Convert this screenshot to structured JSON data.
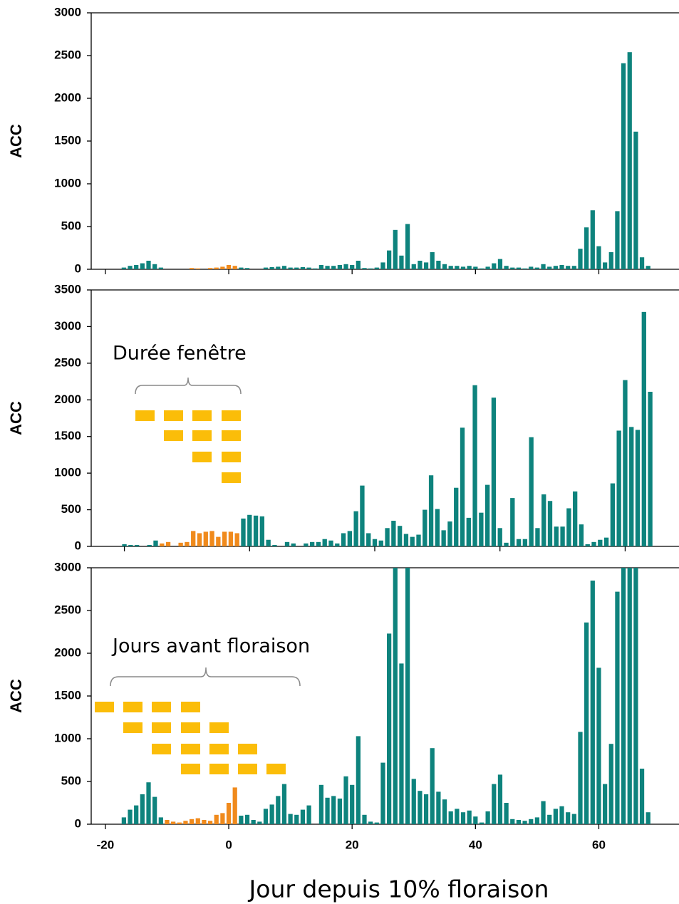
{
  "chart_data": [
    {
      "type": "bar",
      "ylabel": "ACC",
      "ylim": [
        0,
        3000
      ],
      "yticks": [
        0,
        500,
        1000,
        1500,
        2000,
        2500,
        3000
      ],
      "xlim": [
        -22.3,
        73.0
      ],
      "xticks": [
        -20,
        0,
        20,
        40,
        60
      ],
      "xtick_labels": false,
      "x": [
        -17,
        -16,
        -15,
        -14,
        -13,
        -12,
        -11,
        -10,
        -9,
        -8,
        -7,
        -6,
        -5,
        -4,
        -3,
        -2,
        -1,
        0,
        1,
        2,
        3,
        4,
        5,
        6,
        7,
        8,
        9,
        10,
        11,
        12,
        13,
        14,
        15,
        16,
        17,
        18,
        19,
        20,
        21,
        22,
        23,
        24,
        25,
        26,
        27,
        28,
        29,
        30,
        31,
        32,
        33,
        34,
        35,
        36,
        37,
        38,
        39,
        40,
        41,
        42,
        43,
        44,
        45,
        46,
        47,
        48,
        49,
        50,
        51,
        52,
        53,
        54,
        55,
        56,
        57,
        58,
        59,
        60,
        61,
        62,
        63,
        64,
        65,
        66,
        67,
        68
      ],
      "series": [
        {
          "color": "#0e837d",
          "values": [
            20,
            40,
            50,
            70,
            100,
            60,
            20,
            0,
            0,
            0,
            0,
            null,
            null,
            null,
            null,
            null,
            null,
            null,
            null,
            20,
            15,
            0,
            0,
            20,
            25,
            30,
            40,
            20,
            20,
            25,
            20,
            10,
            50,
            40,
            40,
            50,
            60,
            50,
            100,
            15,
            10,
            20,
            80,
            220,
            460,
            160,
            530,
            60,
            100,
            80,
            200,
            100,
            60,
            40,
            40,
            30,
            40,
            30,
            10,
            30,
            70,
            120,
            40,
            20,
            20,
            10,
            30,
            20,
            60,
            30,
            40,
            50,
            40,
            40,
            240,
            490,
            690,
            270,
            80,
            200,
            680,
            2410,
            2540,
            1610,
            140,
            40
          ]
        },
        {
          "color": "#f08a1c",
          "values": [
            null,
            null,
            null,
            null,
            null,
            null,
            null,
            null,
            null,
            null,
            null,
            15,
            10,
            0,
            15,
            20,
            30,
            50,
            40,
            null,
            null,
            null,
            null,
            null,
            null,
            null,
            null,
            null,
            null,
            null,
            null,
            null,
            null,
            null,
            null,
            null,
            null,
            null,
            null,
            null,
            null,
            null,
            null,
            null,
            null,
            null,
            null,
            null,
            null,
            null,
            null,
            null,
            null,
            null,
            null,
            null,
            null,
            null,
            null,
            null,
            null,
            null,
            null,
            null,
            null,
            null,
            null,
            null,
            null,
            null,
            null,
            null,
            null,
            null,
            null,
            null,
            null,
            null,
            null,
            null,
            null,
            null,
            null,
            null,
            null,
            null
          ]
        }
      ]
    },
    {
      "type": "bar",
      "ylabel": "ACC",
      "annotation": "Durée fenêtre",
      "ylim": [
        0,
        3500
      ],
      "yticks": [
        0,
        500,
        1000,
        1500,
        2000,
        2500,
        3000,
        3500
      ],
      "xlim": [
        -25.3,
        68.6
      ],
      "xticks": [
        -20,
        0,
        20,
        40,
        60
      ],
      "xtick_labels": false,
      "x": [
        -20,
        -19,
        -18,
        -17,
        -16,
        -15,
        -14,
        -13,
        -12,
        -11,
        -10,
        -9,
        -8,
        -7,
        -6,
        -5,
        -4,
        -3,
        -2,
        -1,
        0,
        1,
        2,
        3,
        4,
        5,
        6,
        7,
        8,
        9,
        10,
        11,
        12,
        13,
        14,
        15,
        16,
        17,
        18,
        19,
        20,
        21,
        22,
        23,
        24,
        25,
        26,
        27,
        28,
        29,
        30,
        31,
        32,
        33,
        34,
        35,
        36,
        37,
        38,
        39,
        40,
        41,
        42,
        43,
        44,
        45,
        46,
        47,
        48,
        49,
        50,
        51,
        52,
        53,
        54,
        55,
        56,
        57,
        58,
        59,
        60,
        61,
        62,
        63,
        64
      ],
      "series": [
        {
          "color": "#0e837d",
          "values": [
            30,
            20,
            20,
            0,
            20,
            80,
            null,
            null,
            0,
            null,
            null,
            null,
            null,
            null,
            null,
            null,
            null,
            null,
            null,
            380,
            430,
            420,
            410,
            90,
            20,
            0,
            60,
            40,
            0,
            40,
            60,
            60,
            100,
            80,
            40,
            180,
            210,
            480,
            830,
            180,
            100,
            80,
            250,
            350,
            280,
            170,
            130,
            160,
            500,
            970,
            510,
            220,
            340,
            800,
            1620,
            390,
            2200,
            460,
            840,
            2030,
            250,
            50,
            660,
            100,
            100,
            1490,
            250,
            710,
            620,
            270,
            270,
            520,
            750,
            300,
            30,
            60,
            90,
            120,
            860,
            1580,
            2270,
            1630,
            1590,
            3200,
            2110
          ]
        },
        {
          "color": "#f08a1c",
          "values": [
            null,
            null,
            null,
            null,
            null,
            null,
            40,
            60,
            null,
            50,
            60,
            210,
            180,
            200,
            210,
            130,
            200,
            200,
            180,
            null,
            null,
            null,
            null,
            null,
            null,
            null,
            null,
            null,
            null,
            null,
            null,
            null,
            null,
            null,
            null,
            null,
            null,
            null,
            null,
            null,
            null,
            null,
            null,
            null,
            null,
            null,
            null,
            null,
            null,
            null,
            null,
            null,
            null,
            null,
            null,
            null,
            null,
            null,
            null,
            null,
            null,
            null,
            null,
            null,
            null,
            null,
            null,
            null,
            null,
            null,
            null,
            null,
            null,
            null,
            null,
            null,
            null,
            null,
            null,
            null,
            null,
            null,
            null,
            null,
            null
          ]
        }
      ]
    },
    {
      "type": "bar",
      "ylabel": "ACC",
      "annotation": "Jours avant floraison",
      "xlabel": "Jour depuis 10% floraison",
      "ylim": [
        0,
        3000
      ],
      "yticks": [
        0,
        500,
        1000,
        1500,
        2000,
        2500,
        3000
      ],
      "xlim": [
        -22.3,
        73.0
      ],
      "xticks": [
        -20,
        0,
        20,
        40,
        60
      ],
      "xtick_labels": true,
      "x": [
        -17,
        -16,
        -15,
        -14,
        -13,
        -12,
        -11,
        -10,
        -9,
        -8,
        -7,
        -6,
        -5,
        -4,
        -3,
        -2,
        -1,
        0,
        1,
        2,
        3,
        4,
        5,
        6,
        7,
        8,
        9,
        10,
        11,
        12,
        13,
        14,
        15,
        16,
        17,
        18,
        19,
        20,
        21,
        22,
        23,
        24,
        25,
        26,
        27,
        28,
        29,
        30,
        31,
        32,
        33,
        34,
        35,
        36,
        37,
        38,
        39,
        40,
        41,
        42,
        43,
        44,
        45,
        46,
        47,
        48,
        49,
        50,
        51,
        52,
        53,
        54,
        55,
        56,
        57,
        58,
        59,
        60,
        61,
        62,
        63,
        64,
        65,
        66,
        67,
        68
      ],
      "series": [
        {
          "color": "#0e837d",
          "values": [
            80,
            170,
            220,
            350,
            490,
            320,
            80,
            null,
            null,
            null,
            null,
            null,
            null,
            null,
            null,
            null,
            null,
            null,
            null,
            100,
            110,
            50,
            30,
            180,
            230,
            330,
            470,
            120,
            110,
            170,
            220,
            0,
            460,
            310,
            330,
            300,
            560,
            460,
            1030,
            110,
            30,
            20,
            720,
            2230,
            3000,
            1880,
            3000,
            530,
            390,
            350,
            890,
            380,
            290,
            150,
            180,
            140,
            160,
            90,
            20,
            150,
            470,
            580,
            250,
            60,
            50,
            40,
            60,
            80,
            270,
            110,
            180,
            210,
            140,
            120,
            1080,
            2360,
            2850,
            1830,
            470,
            940,
            2720,
            3000,
            3000,
            3000,
            650,
            140
          ]
        },
        {
          "color": "#f08a1c",
          "values": [
            null,
            null,
            null,
            null,
            null,
            null,
            null,
            50,
            30,
            20,
            40,
            60,
            70,
            50,
            40,
            110,
            130,
            250,
            430,
            null,
            null,
            null,
            null,
            null,
            null,
            null,
            null,
            null,
            null,
            null,
            null,
            null,
            null,
            null,
            null,
            null,
            null,
            null,
            null,
            null,
            null,
            null,
            null,
            null,
            null,
            null,
            null,
            null,
            null,
            null,
            null,
            null,
            null,
            null,
            null,
            null,
            null,
            null,
            null,
            null,
            null,
            null,
            null,
            null,
            null,
            null,
            null,
            null,
            null,
            null,
            null,
            null,
            null,
            null,
            null,
            null,
            null,
            null,
            null,
            null,
            null,
            null,
            null,
            null,
            null,
            null
          ]
        }
      ]
    }
  ]
}
